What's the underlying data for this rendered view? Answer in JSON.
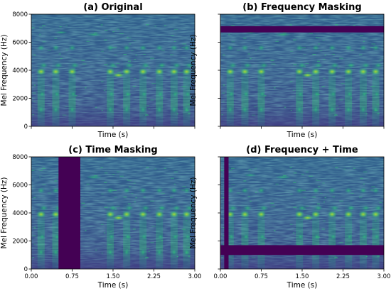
{
  "chart_data": [
    {
      "type": "heatmap",
      "title": "(a) Original",
      "xlabel": "Time (s)",
      "ylabel": "Mel Frequency (Hz)",
      "xlim": [
        0,
        3
      ],
      "ylim": [
        0,
        8000
      ],
      "xticks": [],
      "yticks": [
        "0",
        "2000",
        "4000",
        "6000",
        "8000"
      ],
      "masks": []
    },
    {
      "type": "heatmap",
      "title": "(b) Frequency Masking",
      "xlabel": "Time (s)",
      "ylabel": "Mel Frequency (Hz)",
      "xlim": [
        0,
        3
      ],
      "ylim": [
        0,
        8000
      ],
      "xticks": [],
      "yticks": [
        "0",
        "2000",
        "4000",
        "6000",
        "8000"
      ],
      "masks": [
        {
          "kind": "frequency",
          "from": 6700,
          "to": 7150
        }
      ]
    },
    {
      "type": "heatmap",
      "title": "(c) Time Masking",
      "xlabel": "Time (s)",
      "ylabel": "Mel Frequency (Hz)",
      "xlim": [
        0,
        3
      ],
      "ylim": [
        0,
        8000
      ],
      "xticks": [
        "0.00",
        "0.75",
        "1.50",
        "2.25",
        "3.00"
      ],
      "yticks": [
        "0",
        "2000",
        "4000",
        "6000",
        "8000"
      ],
      "masks": [
        {
          "kind": "time",
          "from": 0.5,
          "to": 0.9
        }
      ]
    },
    {
      "type": "heatmap",
      "title": "(d) Frequency + Time",
      "xlabel": "Time (s)",
      "ylabel": "Mel Frequency (Hz)",
      "xlim": [
        0,
        3
      ],
      "ylim": [
        0,
        8000
      ],
      "xticks": [
        "0.00",
        "0.75",
        "1.50",
        "2.25",
        "3.00"
      ],
      "yticks": [
        "0",
        "2000",
        "4000",
        "6000",
        "8000"
      ],
      "masks": [
        {
          "kind": "time",
          "from": 0.07,
          "to": 0.15
        },
        {
          "kind": "frequency",
          "from": 1000,
          "to": 1700
        }
      ]
    }
  ],
  "colors": {
    "colormap": "viridis",
    "mask": "#440154",
    "background": "#3f4a89",
    "axis": "#000000"
  }
}
